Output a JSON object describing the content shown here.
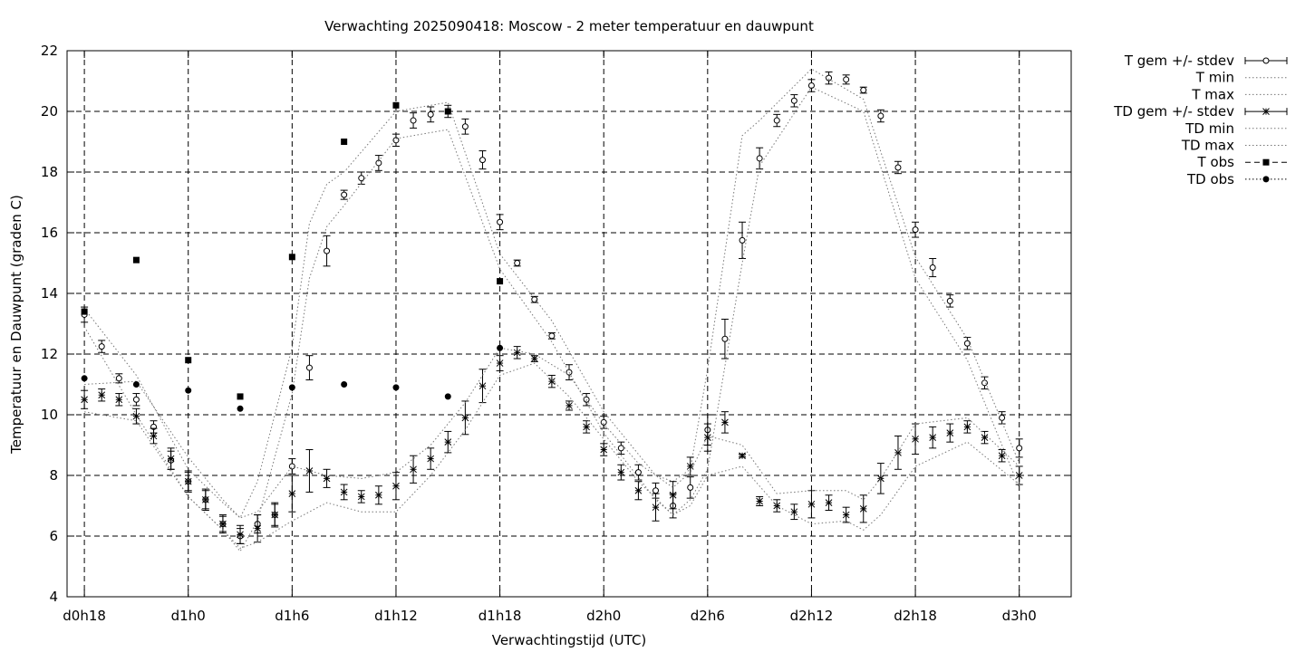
{
  "chart_data": {
    "type": "line",
    "title": "Verwachting 2025090418: Moscow - 2 meter temperatuur en dauwpunt",
    "xlabel": "Verwachtingstijd (UTC)",
    "ylabel": "Temperatuur en Dauwpunt (graden C)",
    "xlim": [
      -1,
      57
    ],
    "ylim": [
      4,
      22
    ],
    "x_unit": "hours since d0h18",
    "xticks": [
      {
        "x": 0,
        "label": "d0h18"
      },
      {
        "x": 6,
        "label": "d1h0"
      },
      {
        "x": 12,
        "label": "d1h6"
      },
      {
        "x": 18,
        "label": "d1h12"
      },
      {
        "x": 24,
        "label": "d1h18"
      },
      {
        "x": 30,
        "label": "d2h0"
      },
      {
        "x": 36,
        "label": "d2h6"
      },
      {
        "x": 42,
        "label": "d2h12"
      },
      {
        "x": 48,
        "label": "d2h18"
      },
      {
        "x": 54,
        "label": "d3h0"
      }
    ],
    "yticks": [
      4,
      6,
      8,
      10,
      12,
      14,
      16,
      18,
      20,
      22
    ],
    "grid": true,
    "legend_position": "outside-top-right",
    "series": [
      {
        "name": "T gem +/- stdev",
        "style": "errorbar-open-circle",
        "x": [
          0,
          1,
          2,
          3,
          4,
          5,
          6,
          7,
          8,
          9,
          10,
          11,
          12,
          13,
          14,
          15,
          16,
          17,
          18,
          19,
          20,
          21,
          22,
          23,
          24,
          25,
          26,
          27,
          28,
          29,
          30,
          31,
          32,
          33,
          34,
          35,
          36,
          37,
          38,
          39,
          40,
          41,
          42,
          43,
          44,
          45,
          46,
          47,
          48,
          49,
          50,
          51,
          52,
          53,
          54
        ],
        "y": [
          13.3,
          12.25,
          11.2,
          10.5,
          9.6,
          8.5,
          7.8,
          7.2,
          6.4,
          6.0,
          6.4,
          6.7,
          8.3,
          11.55,
          15.4,
          17.25,
          17.8,
          18.3,
          19.05,
          19.7,
          19.9,
          20.0,
          19.5,
          18.4,
          16.35,
          15.0,
          13.8,
          12.6,
          11.4,
          10.5,
          9.75,
          8.9,
          8.1,
          7.5,
          7.0,
          7.6,
          9.5,
          12.5,
          15.75,
          18.45,
          19.7,
          20.35,
          20.85,
          21.1,
          21.05,
          20.7,
          19.85,
          18.15,
          16.1,
          14.85,
          13.75,
          12.35,
          11.05,
          9.9,
          8.9
        ],
        "stdev": [
          0.25,
          0.2,
          0.15,
          0.2,
          0.2,
          0.3,
          0.3,
          0.3,
          0.25,
          0.25,
          0.3,
          0.35,
          0.25,
          0.4,
          0.5,
          0.15,
          0.2,
          0.25,
          0.2,
          0.25,
          0.25,
          0.2,
          0.25,
          0.3,
          0.25,
          0.1,
          0.1,
          0.1,
          0.25,
          0.2,
          0.2,
          0.2,
          0.25,
          0.25,
          0.4,
          0.35,
          0.5,
          0.65,
          0.6,
          0.35,
          0.2,
          0.2,
          0.2,
          0.2,
          0.15,
          0.1,
          0.2,
          0.2,
          0.25,
          0.3,
          0.2,
          0.2,
          0.2,
          0.2,
          0.3
        ]
      },
      {
        "name": "T min",
        "style": "dotted",
        "x": [
          0,
          3,
          6,
          8,
          9,
          10,
          12,
          13,
          14,
          15,
          18,
          21,
          24,
          27,
          30,
          33,
          34,
          35,
          36,
          38,
          39,
          42,
          45,
          48,
          51,
          54
        ],
        "y": [
          12.9,
          10.0,
          7.3,
          6.2,
          5.5,
          6.5,
          10.7,
          14.5,
          16.2,
          16.9,
          19.1,
          19.4,
          14.8,
          12.4,
          9.4,
          7.2,
          6.7,
          7.2,
          8.2,
          15.0,
          18.2,
          20.8,
          20.0,
          14.5,
          11.8,
          7.6
        ]
      },
      {
        "name": "T max",
        "style": "dotted",
        "x": [
          0,
          3,
          6,
          8,
          9,
          10,
          12,
          13,
          14,
          15,
          18,
          21,
          24,
          27,
          30,
          33,
          34,
          35,
          36,
          38,
          39,
          42,
          45,
          48,
          51,
          54
        ],
        "y": [
          13.5,
          11.3,
          8.2,
          7.1,
          6.6,
          7.8,
          12.2,
          16.3,
          17.6,
          18.0,
          20.0,
          20.3,
          15.3,
          13.1,
          10.1,
          8.0,
          7.8,
          8.2,
          11.5,
          19.2,
          19.7,
          21.4,
          20.4,
          15.2,
          12.5,
          8.4
        ]
      },
      {
        "name": "TD gem +/- stdev",
        "style": "errorbar-asterisk",
        "x": [
          0,
          1,
          2,
          3,
          4,
          5,
          6,
          7,
          8,
          9,
          10,
          11,
          12,
          13,
          14,
          15,
          16,
          17,
          18,
          19,
          20,
          21,
          22,
          23,
          24,
          25,
          26,
          27,
          28,
          29,
          30,
          31,
          32,
          33,
          34,
          35,
          36,
          37,
          38,
          39,
          40,
          41,
          42,
          43,
          44,
          45,
          46,
          47,
          48,
          49,
          50,
          51,
          52,
          53,
          54
        ],
        "y": [
          10.5,
          10.65,
          10.5,
          9.95,
          9.3,
          8.55,
          7.8,
          7.2,
          6.4,
          6.05,
          6.25,
          6.7,
          7.4,
          8.15,
          7.9,
          7.45,
          7.3,
          7.35,
          7.65,
          8.2,
          8.55,
          9.1,
          9.9,
          10.95,
          11.7,
          12.05,
          11.85,
          11.1,
          10.3,
          9.6,
          8.85,
          8.1,
          7.5,
          6.95,
          7.35,
          8.3,
          9.25,
          9.75,
          8.65,
          7.15,
          7.0,
          6.8,
          7.05,
          7.1,
          6.7,
          6.9,
          7.9,
          8.75,
          9.2,
          9.25,
          9.4,
          9.6,
          9.25,
          8.65,
          8.0
        ],
        "stdev": [
          0.3,
          0.2,
          0.2,
          0.25,
          0.25,
          0.35,
          0.35,
          0.35,
          0.3,
          0.3,
          0.45,
          0.4,
          0.6,
          0.7,
          0.3,
          0.25,
          0.2,
          0.3,
          0.45,
          0.45,
          0.35,
          0.35,
          0.55,
          0.55,
          0.25,
          0.2,
          0.1,
          0.2,
          0.15,
          0.2,
          0.2,
          0.25,
          0.3,
          0.45,
          0.45,
          0.3,
          0.45,
          0.35,
          0.05,
          0.15,
          0.2,
          0.25,
          0.45,
          0.25,
          0.25,
          0.45,
          0.5,
          0.55,
          0.5,
          0.35,
          0.3,
          0.2,
          0.2,
          0.2,
          0.3
        ]
      },
      {
        "name": "TD min",
        "style": "dotted",
        "x": [
          0,
          3,
          6,
          8,
          9,
          10,
          12,
          14,
          16,
          18,
          20,
          22,
          24,
          26,
          28,
          30,
          32,
          34,
          35,
          36,
          38,
          40,
          42,
          44,
          45,
          46,
          48,
          51,
          54
        ],
        "y": [
          10.1,
          9.8,
          7.3,
          6.2,
          5.6,
          5.8,
          6.5,
          7.1,
          6.8,
          6.8,
          8.0,
          9.5,
          11.3,
          11.7,
          10.6,
          9.2,
          7.8,
          6.7,
          7.0,
          8.0,
          8.3,
          7.0,
          6.4,
          6.5,
          6.2,
          6.7,
          8.3,
          9.1,
          7.7
        ]
      },
      {
        "name": "TD max",
        "style": "dotted",
        "x": [
          0,
          3,
          6,
          8,
          9,
          10,
          12,
          14,
          16,
          18,
          20,
          22,
          24,
          26,
          28,
          30,
          32,
          34,
          35,
          36,
          38,
          40,
          42,
          44,
          45,
          46,
          48,
          51,
          54
        ],
        "y": [
          11.0,
          11.1,
          8.6,
          7.2,
          6.6,
          6.8,
          8.3,
          8.0,
          7.9,
          8.1,
          9.0,
          10.4,
          12.2,
          12.0,
          11.3,
          9.7,
          8.4,
          7.6,
          8.1,
          9.3,
          9.0,
          7.4,
          7.5,
          7.5,
          7.2,
          7.9,
          9.7,
          9.9,
          8.3
        ]
      },
      {
        "name": "T obs",
        "style": "filled-square",
        "x": [
          0,
          3,
          6,
          9,
          12,
          15,
          18,
          21,
          24
        ],
        "y": [
          13.4,
          15.1,
          11.8,
          10.6,
          15.2,
          19.0,
          20.2,
          20.0,
          14.4
        ]
      },
      {
        "name": "TD obs",
        "style": "filled-circle",
        "x": [
          0,
          3,
          6,
          9,
          12,
          15,
          18,
          21,
          24
        ],
        "y": [
          11.2,
          11.0,
          10.8,
          10.2,
          10.9,
          11.0,
          10.9,
          10.6,
          12.2
        ]
      }
    ]
  }
}
